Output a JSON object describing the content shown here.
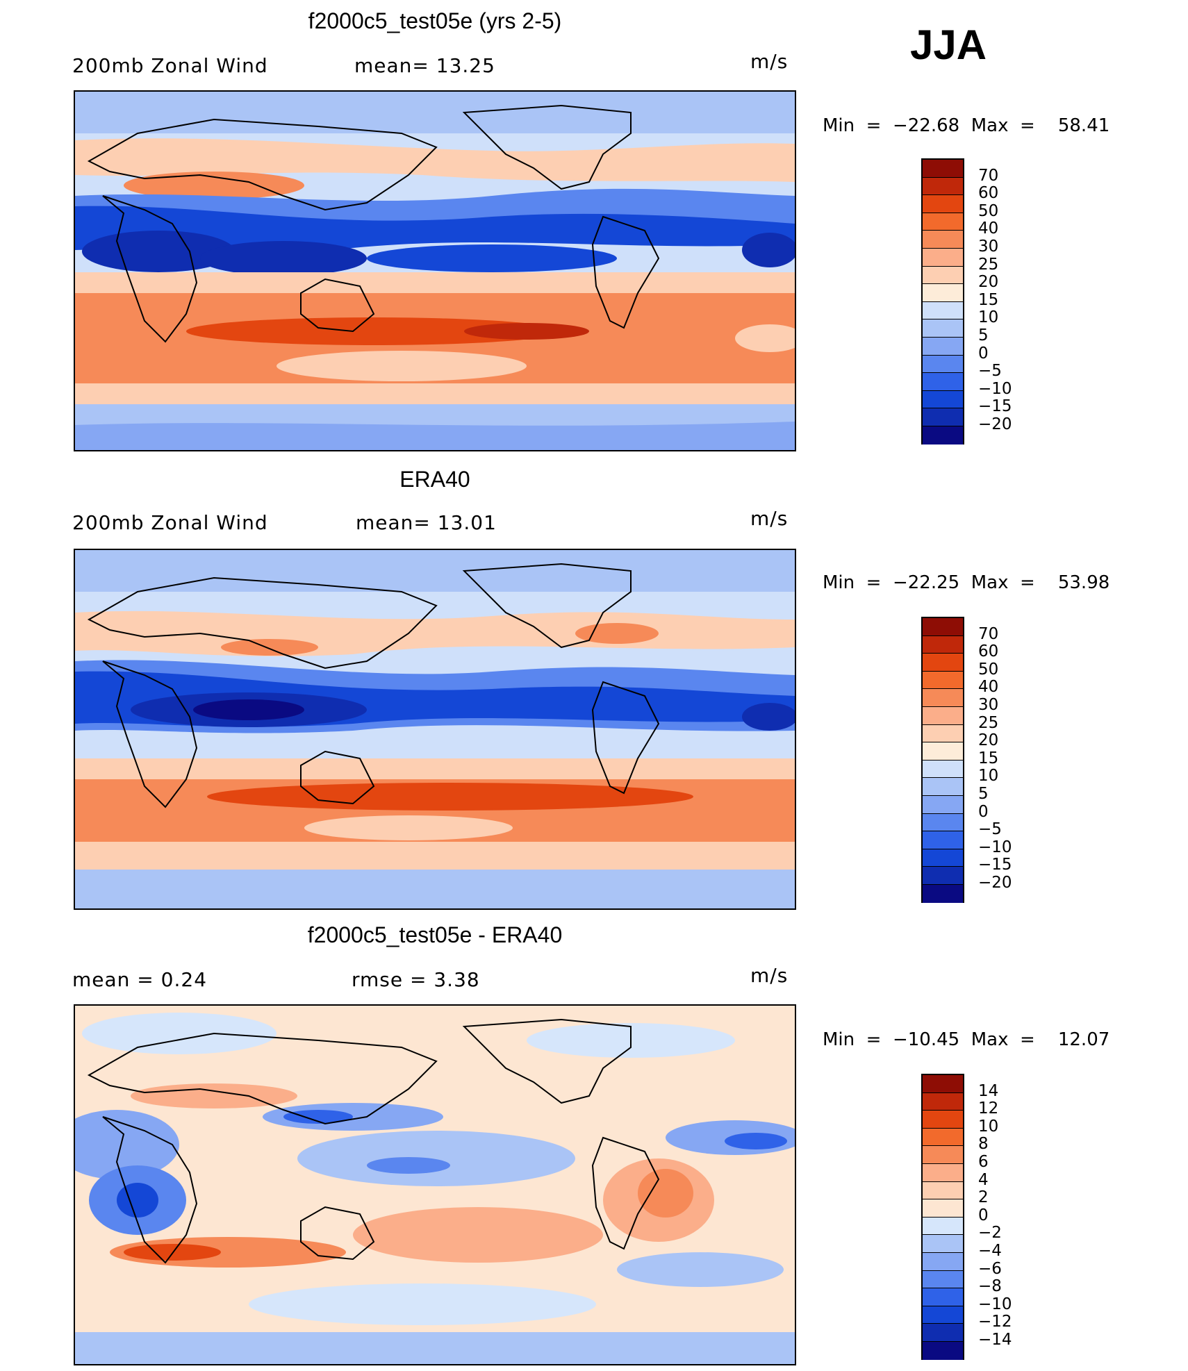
{
  "season": "JJA",
  "colors": {
    "wind": [
      "#0a0a82",
      "#0f2db0",
      "#1447d6",
      "#2f62e8",
      "#5a86ef",
      "#86a7f3",
      "#aac4f6",
      "#cfe0fa",
      "#fdecd9",
      "#fdcfb2",
      "#fbae8a",
      "#f68a58",
      "#f26a2c",
      "#e34610",
      "#c0280a",
      "#8e0d05"
    ],
    "diff": [
      "#0a0a82",
      "#0f2db0",
      "#1447d6",
      "#2f62e8",
      "#5a86ef",
      "#86a7f3",
      "#aac4f6",
      "#d6e6fb",
      "#fde6d2",
      "#fdcfb2",
      "#fbae8a",
      "#f68a58",
      "#f26a2c",
      "#e34610",
      "#c0280a",
      "#8e0d05"
    ]
  },
  "panels": [
    {
      "title": "f2000c5_test05e (yrs 2-5)",
      "left_text": "200mb  Zonal  Wind",
      "mid_text": "mean=   13.25",
      "units": "m/s",
      "minmax": "Min  =  −22.68  Max  =    58.41",
      "cbar_labels": [
        "70",
        "60",
        "50",
        "40",
        "30",
        "25",
        "20",
        "15",
        "10",
        "5",
        "0",
        "−5",
        "−10",
        "−15",
        "−20"
      ]
    },
    {
      "title": "ERA40",
      "left_text": "200mb  Zonal  Wind",
      "mid_text": "mean=   13.01",
      "units": "m/s",
      "minmax": "Min  =  −22.25  Max  =    53.98",
      "cbar_labels": [
        "70",
        "60",
        "50",
        "40",
        "30",
        "25",
        "20",
        "15",
        "10",
        "5",
        "0",
        "−5",
        "−10",
        "−15",
        "−20"
      ]
    },
    {
      "title": "f2000c5_test05e - ERA40",
      "left_text": "mean  =      0.24",
      "mid_text": "rmse  =      3.38",
      "units": "m/s",
      "minmax": "Min  =  −10.45  Max  =    12.07",
      "cbar_labels": [
        "14",
        "12",
        "10",
        "8",
        "6",
        "4",
        "2",
        "0",
        "−2",
        "−4",
        "−6",
        "−8",
        "−10",
        "−12",
        "−14"
      ]
    }
  ]
}
